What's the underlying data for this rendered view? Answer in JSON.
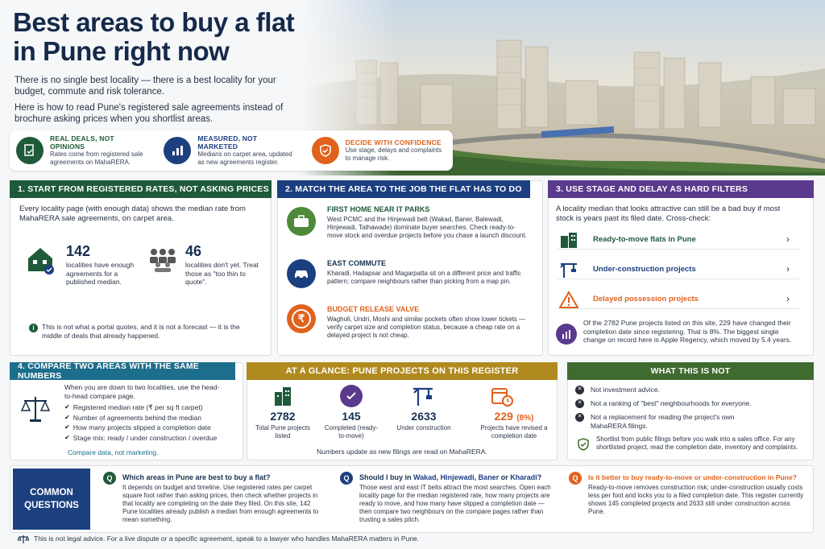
{
  "header": {
    "title": "Best areas to buy a flat in Pune right now",
    "intro_1": "There is no single best locality — there is a best locality for your budget, commute and risk tolerance.",
    "intro_2": "Here is how to read Pune's registered sale agreements instead of brochure asking prices when you shortlist areas."
  },
  "pillars": [
    {
      "icon": "document-check-icon",
      "title": "REAL DEALS, NOT OPINIONS",
      "text": "Rates come from registered sale agreements on MahaRERA.",
      "color": "#1f5a3a"
    },
    {
      "icon": "bar-chart-icon",
      "title": "MEASURED, NOT MARKETED",
      "text": "Medians on carpet area, updated as new agreements register.",
      "color": "#1c3f80"
    },
    {
      "icon": "shield-check-icon",
      "title": "DECIDE WITH CONFIDENCE",
      "text": "Use stage, delays and complaints to manage risk.",
      "color": "#e0621c"
    }
  ],
  "sec1": {
    "heading": "1. START FROM REGISTERED RATES, NOT ASKING PRICES",
    "color": "#1f5a3a",
    "text": "Every locality page (with enough data) shows the median rate from MahaRERA sale agreements, on carpet area.",
    "stat_a_num": "142",
    "stat_a_lbl": "localities have enough agreements for a published median.",
    "stat_b_num": "46",
    "stat_b_lbl": "localities don't yet. Treat those as \"too thin to quote\".",
    "note": "This is not what a portal quotes, and it is not a forecast — it is the middle of deals that already happened."
  },
  "sec2": {
    "heading": "2. MATCH THE AREA TO THE JOB THE FLAT HAS TO DO",
    "color": "#1c3f80",
    "items": [
      {
        "icon": "briefcase-icon",
        "title": "FIRST HOME NEAR IT PARKS",
        "title_color": "#1f5a3a",
        "text": "West PCMC and the Hinjewadi belt (Wakad, Baner, Balewadi, Hinjewadi, Tathawade) dominate buyer searches. Check ready-to-move stock and overdue projects before you chase a launch discount."
      },
      {
        "icon": "car-icon",
        "title": "EAST COMMUTE",
        "title_color": "#16304f",
        "text": "Kharadi, Hadapsar and Magarpatta sit on a different price and traffic pattern; compare neighbours rather than picking from a map pin."
      },
      {
        "icon": "rupee-icon",
        "title": "BUDGET RELEASE VALVE",
        "title_color": "#e0621c",
        "text": "Wagholi, Undri, Moshi and similar pockets often show lower tickets — verify carpet size and completion status, because a cheap rate on a delayed project is not cheap."
      }
    ]
  },
  "sec3": {
    "heading": "3. USE STAGE AND DELAY AS HARD FILTERS",
    "color": "#5a3a8c",
    "text": "A locality median that looks attractive can still be a bad buy if most stock is years past its filed date. Cross-check:",
    "links": [
      {
        "icon": "building-icon",
        "label": "Ready-to-move flats in Pune",
        "color": "#1f5a3a"
      },
      {
        "icon": "crane-icon",
        "label": "Under-construction projects",
        "color": "#1c3f80"
      },
      {
        "icon": "warning-icon",
        "label": "Delayed possession projects",
        "color": "#e0621c"
      }
    ],
    "note": "Of the 2782 Pune projects listed on this site, 229 have changed their completion date since registering. That is 8%. The biggest single change on record here is Apple Regency, which moved by 5.4 years."
  },
  "sec4": {
    "heading": "4. COMPARE TWO AREAS WITH THE SAME NUMBERS",
    "color": "#1c6e8c",
    "intro": "When you are down to two localities, use the head-to-head compare page.",
    "checks": [
      "Registered median rate (₹ per sq ft carpet)",
      "Number of agreements behind the median",
      "How many projects slipped a completion date",
      "Stage mix: ready / under construction / overdue"
    ],
    "footer": "Compare data, not marketing."
  },
  "glance": {
    "heading": "AT A GLANCE: PUNE PROJECTS ON THIS REGISTER",
    "color": "#b08a1e",
    "stats": [
      {
        "icon": "building-icon",
        "num": "2782",
        "label": "Total Pune projects listed"
      },
      {
        "icon": "check-circle-icon",
        "num": "145",
        "label": "Completed (ready-to-move)"
      },
      {
        "icon": "crane-icon",
        "num": "2633",
        "label": "Under construction"
      },
      {
        "icon": "calendar-clock-icon",
        "num": "229",
        "num_extra": "(8%)",
        "label": "Projects have revised a completion date"
      }
    ],
    "footer": "Numbers update as new filings are read on MahaRERA."
  },
  "not": {
    "heading": "WHAT THIS IS NOT",
    "color": "#3f6b2e",
    "items": [
      "Not investment advice.",
      "Not a ranking of \"best\" neighbourhoods for everyone.",
      "Not a replacement for reading the project's own MahaRERA filings."
    ],
    "note": "Shortlist from public filings before you walk into a sales office. For any shortlisted project, read the completion date, inventory and complaints."
  },
  "faq": {
    "label": "COMMON QUESTIONS",
    "items": [
      {
        "q": "Which areas in Pune are best to buy a flat?",
        "a": "It depends on budget and timeline. Use registered rates per carpet square foot rather than asking prices, then check whether projects in that locality are completing on the date they filed. On this site, 142 Pune localities already publish a median from enough agreements to mean something.",
        "color": "#1f5a3a"
      },
      {
        "q_pre": "Should I buy in ",
        "q_hl": "Wakad, Hinjewadi, Baner",
        "q_mid": " or ",
        "q_hl2": "Kharadi",
        "q_end": "?",
        "a": "Those west and east IT belts attract the most searches. Open each locality page for the median registered rate, how many projects are ready to move, and how many have slipped a completion date — then compare two neighbours on the compare pages rather than trusting a sales pitch.",
        "color": "#1c3f80"
      },
      {
        "q": "Is it better to buy ready-to-move or under-construction in Pune?",
        "a": "Ready-to-move removes construction risk; under-construction usually costs less per foot and locks you to a filed completion date. This register currently shows 145 completed projects and 2633 still under construction across Pune.",
        "color": "#e0621c"
      }
    ]
  },
  "disclaimer": "This is not legal advice. For a live dispute or a specific agreement, speak to a lawyer who handles MahaRERA matters in Pune."
}
